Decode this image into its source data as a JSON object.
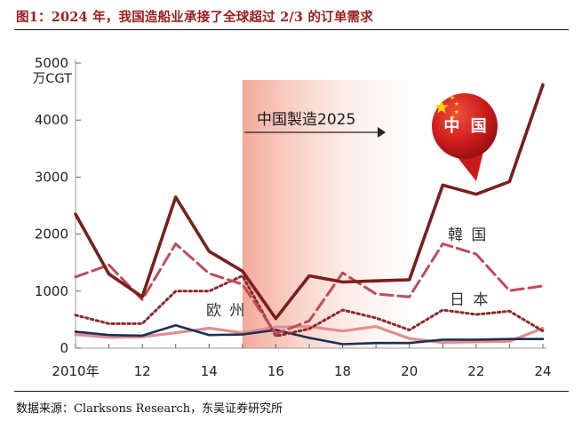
{
  "figure": {
    "title": "图1：2024 年，我国造船业承接了全球超过 2/3 的订单需求",
    "source": "数据来源：Clarksons Research，东吴证券研究所"
  },
  "chart_data": {
    "type": "line",
    "unit_label": "万CGT",
    "x": [
      2010,
      2011,
      2012,
      2013,
      2014,
      2015,
      2016,
      2017,
      2018,
      2019,
      2020,
      2021,
      2022,
      2023,
      2024
    ],
    "xticks": [
      {
        "x": 2010,
        "label": "2010年"
      },
      {
        "x": 2012,
        "label": "12"
      },
      {
        "x": 2014,
        "label": "14"
      },
      {
        "x": 2016,
        "label": "16"
      },
      {
        "x": 2018,
        "label": "18"
      },
      {
        "x": 2020,
        "label": "20"
      },
      {
        "x": 2022,
        "label": "22"
      },
      {
        "x": 2024,
        "label": "24"
      }
    ],
    "yticks": [
      {
        "y": 0,
        "label": "0"
      },
      {
        "y": 1000,
        "label": "1000"
      },
      {
        "y": 2000,
        "label": "2000"
      },
      {
        "y": 3000,
        "label": "3000"
      },
      {
        "y": 4000,
        "label": "4000"
      },
      {
        "y": 5000,
        "label": "5000"
      }
    ],
    "xlim": [
      2010,
      2024
    ],
    "ylim": [
      0,
      5000
    ],
    "grid": false,
    "highlight": {
      "from": 2015,
      "to": 2020,
      "label": "中国製造2025"
    },
    "series": [
      {
        "name": "中国",
        "style": "solid",
        "color": "#7a1e1e",
        "values": [
          2350,
          1300,
          900,
          2650,
          1700,
          1350,
          520,
          1270,
          1160,
          1180,
          1200,
          2860,
          2700,
          2920,
          4620
        ]
      },
      {
        "name": "韓 国",
        "style": "dashed",
        "color": "#c04b5a",
        "values": [
          1250,
          1460,
          850,
          1830,
          1310,
          1120,
          250,
          480,
          1320,
          950,
          900,
          1830,
          1650,
          1010,
          1090
        ]
      },
      {
        "name": "日 本",
        "style": "dotted",
        "color": "#8b2a2a",
        "values": [
          580,
          430,
          430,
          1000,
          1000,
          1270,
          210,
          340,
          670,
          530,
          320,
          670,
          590,
          650,
          300
        ]
      },
      {
        "name": "欧 州",
        "style": "solid",
        "color": "#1c2f54",
        "values": [
          290,
          230,
          220,
          400,
          230,
          240,
          320,
          180,
          70,
          90,
          90,
          150,
          150,
          160,
          160
        ]
      },
      {
        "name": "",
        "style": "solid",
        "color": "#e08e8e",
        "values": [
          240,
          190,
          200,
          270,
          350,
          270,
          370,
          380,
          300,
          380,
          170,
          100,
          110,
          120,
          350
        ]
      }
    ],
    "badge": {
      "label": "中 国",
      "series": "中国"
    }
  },
  "colors": {
    "title": "#9b1d1d",
    "highlight_fill": "#f6c3b6",
    "badge_fill": "#cc1a1a",
    "star": "#ffd400"
  }
}
